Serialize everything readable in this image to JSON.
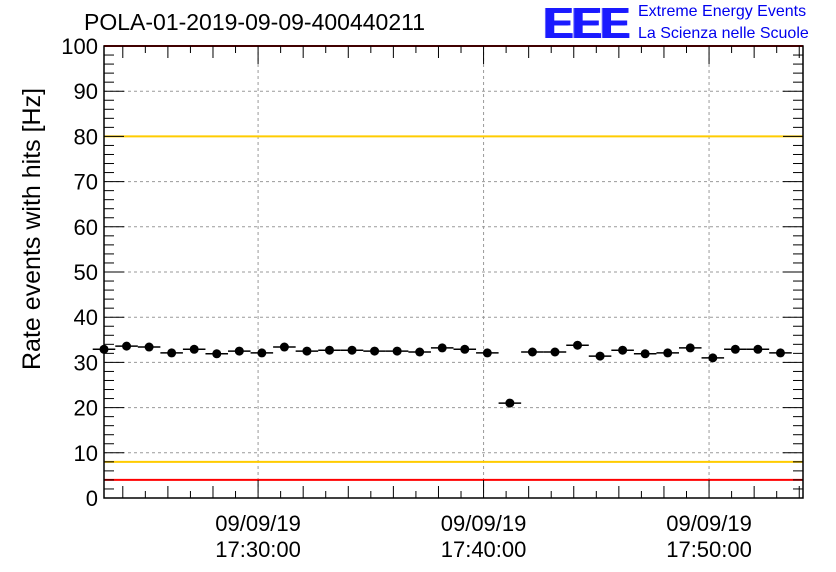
{
  "header": {
    "title": "POLA-01-2019-09-09-400440211",
    "logo_text": "EEE",
    "logo_line1": "Extreme Energy Events",
    "logo_line2": "La Scienza nelle Scuole"
  },
  "colors": {
    "threshold_red": "#ff0000",
    "threshold_yellow": "#ffcc00",
    "marker": "#000000",
    "logo_blue": "#1a1aff"
  },
  "chart_data": {
    "type": "scatter",
    "title": "POLA-01-2019-09-09-400440211",
    "ylabel": "Rate events with hits [Hz]",
    "xlabel": "",
    "ylim": [
      0,
      100
    ],
    "yticks": [
      0,
      10,
      20,
      30,
      40,
      50,
      60,
      70,
      80,
      90,
      100
    ],
    "xlim": [
      "17:23:10",
      "17:54:10"
    ],
    "x_tick_labels": [
      {
        "time": "17:30:00",
        "date": "09/09/19",
        "label": "09/09/19 17:30:00"
      },
      {
        "time": "17:40:00",
        "date": "09/09/19",
        "label": "09/09/19 17:40:00"
      },
      {
        "time": "17:50:00",
        "date": "09/09/19",
        "label": "09/09/19 17:50:00"
      }
    ],
    "grid": true,
    "reference_lines": [
      {
        "y": 100,
        "color": "#ff0000"
      },
      {
        "y": 80,
        "color": "#ffcc00"
      },
      {
        "y": 8,
        "color": "#ffcc00"
      },
      {
        "y": 4,
        "color": "#ff0000"
      }
    ],
    "bin_width_minutes": 1,
    "series": [
      {
        "x": [
          "17:23:10",
          "17:24:10",
          "17:25:10",
          "17:26:10",
          "17:27:10",
          "17:28:10",
          "17:29:10",
          "17:30:10",
          "17:31:10",
          "17:32:10",
          "17:33:10",
          "17:34:10",
          "17:35:10",
          "17:36:10",
          "17:37:10",
          "17:38:10",
          "17:39:10",
          "17:40:10",
          "17:41:10",
          "17:42:10",
          "17:43:10",
          "17:44:10",
          "17:45:10",
          "17:46:10",
          "17:47:10",
          "17:48:10",
          "17:49:10",
          "17:50:10",
          "17:51:10",
          "17:52:10",
          "17:53:10"
        ],
        "values": [
          32.9,
          33.6,
          33.4,
          32.1,
          32.9,
          31.9,
          32.5,
          32.1,
          33.4,
          32.5,
          32.7,
          32.7,
          32.5,
          32.5,
          32.3,
          33.2,
          32.9,
          32.1,
          21.0,
          32.3,
          32.3,
          33.8,
          31.4,
          32.7,
          31.9,
          32.1,
          33.2,
          31.0,
          32.9,
          32.9,
          32.1
        ]
      }
    ]
  }
}
